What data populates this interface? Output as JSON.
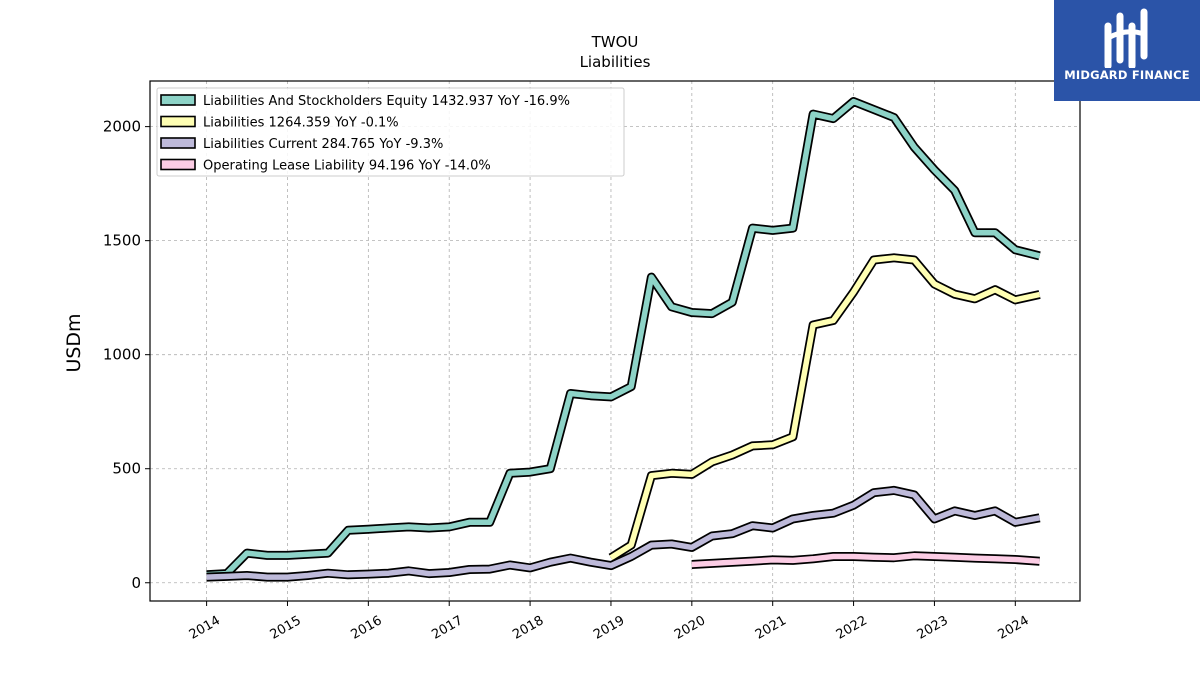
{
  "logo": {
    "text": "MIDGARD FINANCE",
    "color": "#2b54a8"
  },
  "chart_data": {
    "type": "line",
    "title": "TWOU",
    "subtitle": "Liabilities",
    "ylabel": "USDm",
    "xlabel": "",
    "ylim": [
      -80,
      2200
    ],
    "xlim": [
      2013.3,
      2024.8
    ],
    "yticks": [
      0,
      500,
      1000,
      1500,
      2000
    ],
    "xticks": [
      "2014",
      "2015",
      "2016",
      "2017",
      "2018",
      "2019",
      "2020",
      "2021",
      "2022",
      "2023",
      "2024"
    ],
    "grid": true,
    "legend_position": "top-left",
    "series": [
      {
        "name": "Liabilities And Stockholders Equity",
        "legend": "Liabilities And Stockholders Equity  1432.937 YoY -16.9%",
        "color": "#8dd3c7",
        "x": [
          2014.0,
          2014.25,
          2014.5,
          2014.75,
          2015.0,
          2015.25,
          2015.5,
          2015.75,
          2016.0,
          2016.25,
          2016.5,
          2016.75,
          2017.0,
          2017.25,
          2017.5,
          2017.75,
          2018.0,
          2018.25,
          2018.5,
          2018.75,
          2019.0,
          2019.25,
          2019.5,
          2019.75,
          2020.0,
          2020.25,
          2020.5,
          2020.75,
          2021.0,
          2021.25,
          2021.5,
          2021.75,
          2022.0,
          2022.25,
          2022.5,
          2022.75,
          2023.0,
          2023.25,
          2023.5,
          2023.75,
          2024.0,
          2024.3
        ],
        "y": [
          35,
          40,
          130,
          120,
          120,
          125,
          130,
          230,
          235,
          240,
          245,
          240,
          245,
          265,
          265,
          480,
          485,
          500,
          830,
          820,
          815,
          860,
          1340,
          1210,
          1185,
          1180,
          1230,
          1555,
          1545,
          1555,
          2055,
          2035,
          2110,
          2075,
          2040,
          1910,
          1810,
          1720,
          1535,
          1535,
          1460,
          1433
        ]
      },
      {
        "name": "Liabilities",
        "legend": "Liabilities  1264.359 YoY -0.1%",
        "color": "#ffffb3",
        "x": [
          2019.0,
          2019.25,
          2019.5,
          2019.75,
          2020.0,
          2020.25,
          2020.5,
          2020.75,
          2021.0,
          2021.25,
          2021.5,
          2021.75,
          2022.0,
          2022.25,
          2022.5,
          2022.75,
          2023.0,
          2023.25,
          2023.5,
          2023.75,
          2024.0,
          2024.3
        ],
        "y": [
          110,
          165,
          470,
          480,
          475,
          530,
          560,
          600,
          605,
          640,
          1130,
          1150,
          1275,
          1415,
          1425,
          1415,
          1310,
          1265,
          1245,
          1285,
          1240,
          1264
        ]
      },
      {
        "name": "Liabilities Current",
        "legend": "Liabilities Current  284.765 YoY -9.3%",
        "color": "#bebada",
        "x": [
          2014.0,
          2014.25,
          2014.5,
          2014.75,
          2015.0,
          2015.25,
          2015.5,
          2015.75,
          2016.0,
          2016.25,
          2016.5,
          2016.75,
          2017.0,
          2017.25,
          2017.5,
          2017.75,
          2018.0,
          2018.25,
          2018.5,
          2018.75,
          2019.0,
          2019.25,
          2019.5,
          2019.75,
          2020.0,
          2020.25,
          2020.5,
          2020.75,
          2021.0,
          2021.25,
          2021.5,
          2021.75,
          2022.0,
          2022.25,
          2022.5,
          2022.75,
          2023.0,
          2023.25,
          2023.5,
          2023.75,
          2024.0,
          2024.3
        ],
        "y": [
          25,
          28,
          32,
          25,
          25,
          32,
          42,
          35,
          38,
          42,
          52,
          40,
          45,
          58,
          60,
          78,
          65,
          90,
          108,
          90,
          75,
          115,
          165,
          170,
          155,
          205,
          215,
          250,
          240,
          280,
          295,
          305,
          340,
          395,
          405,
          385,
          280,
          315,
          295,
          315,
          265,
          285
        ]
      },
      {
        "name": "Operating Lease Liability",
        "legend": "Operating Lease Liability  94.196 YoY -14.0%",
        "color": "#fccde5",
        "x": [
          2020.0,
          2020.25,
          2020.5,
          2020.75,
          2021.0,
          2021.25,
          2021.5,
          2021.75,
          2022.0,
          2022.25,
          2022.5,
          2022.75,
          2023.0,
          2023.25,
          2023.5,
          2023.75,
          2024.0,
          2024.3
        ],
        "y": [
          80,
          85,
          90,
          95,
          100,
          98,
          105,
          115,
          115,
          112,
          110,
          118,
          115,
          112,
          108,
          105,
          102,
          94
        ]
      }
    ]
  }
}
